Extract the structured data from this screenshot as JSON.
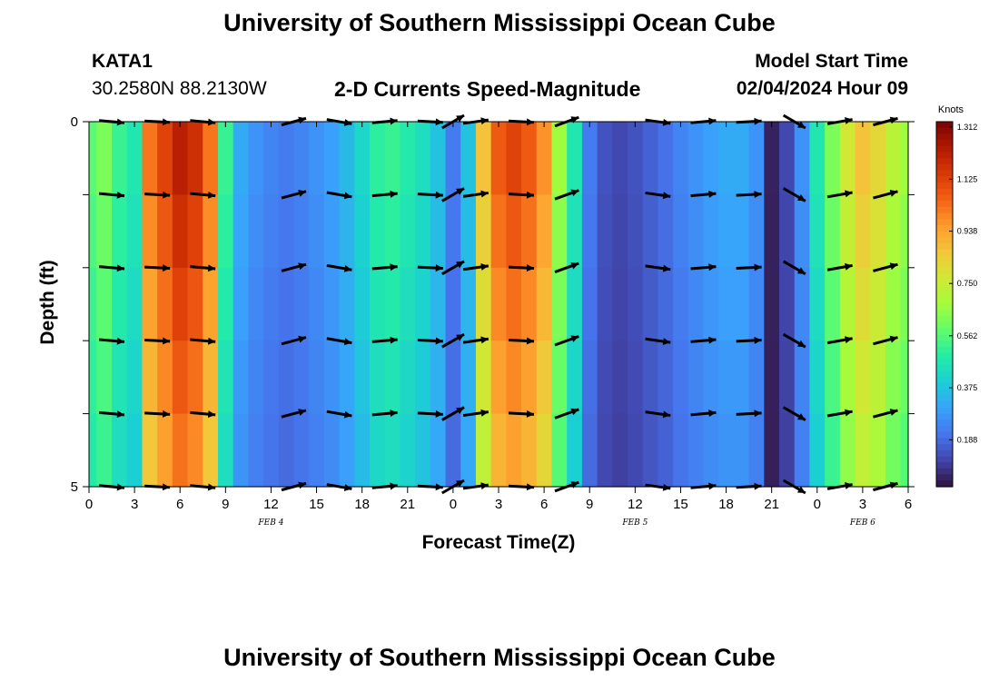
{
  "header": {
    "title": "University of Southern Mississippi Ocean Cube",
    "station": "KATA1",
    "location": "30.2580N  88.2130W",
    "plot_title": "2-D Currents Speed-Magnitude",
    "model_start_label": "Model Start Time",
    "model_start_value": "02/04/2024 Hour 09"
  },
  "footer": {
    "title": "University of Southern Mississippi Ocean Cube"
  },
  "colors": {
    "ramp": [
      "#30123b",
      "#4145ab",
      "#4675ed",
      "#39a2fc",
      "#1bcfd4",
      "#24eca6",
      "#61fc6c",
      "#a4fc3b",
      "#d1e834",
      "#f3c63a",
      "#fe9b2d",
      "#f36315",
      "#d93806",
      "#b11901",
      "#7a0403"
    ]
  },
  "chart_data": {
    "type": "heatmap",
    "title": "2-D Currents Speed-Magnitude",
    "xlabel": "Forecast Time(Z)",
    "ylabel": "Depth (ft)",
    "x_tick_labels": [
      "0",
      "3",
      "6",
      "9",
      "12",
      "15",
      "18",
      "21",
      "0",
      "3",
      "6",
      "9",
      "12",
      "15",
      "18",
      "21",
      "0",
      "3",
      "6"
    ],
    "y_tick_labels": [
      "0",
      "5"
    ],
    "ylim": [
      0,
      5
    ],
    "date_labels": [
      {
        "text": "FEB 4",
        "hour": 12
      },
      {
        "text": "FEB 5",
        "hour": 36
      },
      {
        "text": "FEB 6",
        "hour": 51
      }
    ],
    "colorbar": {
      "label": "Knots",
      "ticks": [
        "1.312",
        "1.125",
        "0.938",
        "0.750",
        "0.562",
        "0.375",
        "0.188"
      ],
      "min": 0.0,
      "max": 1.312
    },
    "time_hours": [
      0,
      1,
      2,
      3,
      4,
      5,
      6,
      7,
      8,
      9,
      10,
      11,
      12,
      13,
      14,
      15,
      16,
      17,
      18,
      19,
      20,
      21,
      22,
      23,
      24,
      25,
      26,
      27,
      28,
      29,
      30,
      31,
      32,
      33,
      34,
      35,
      36,
      37,
      38,
      39,
      40,
      41,
      42,
      43,
      44,
      45,
      46,
      47,
      48,
      49,
      50,
      51,
      52,
      53,
      54
    ],
    "speed_knots": [
      0.55,
      0.6,
      0.5,
      0.45,
      1.0,
      1.1,
      1.2,
      1.15,
      1.0,
      0.5,
      0.3,
      0.25,
      0.22,
      0.2,
      0.22,
      0.25,
      0.28,
      0.33,
      0.4,
      0.48,
      0.5,
      0.46,
      0.42,
      0.35,
      0.2,
      0.35,
      0.85,
      1.05,
      1.1,
      1.05,
      0.95,
      0.65,
      0.45,
      0.2,
      0.12,
      0.1,
      0.12,
      0.15,
      0.18,
      0.22,
      0.25,
      0.28,
      0.3,
      0.3,
      0.25,
      0.03,
      0.1,
      0.25,
      0.45,
      0.6,
      0.75,
      0.85,
      0.8,
      0.7,
      0.65
    ],
    "vectors": [
      {
        "hour": 1.5,
        "angle": -5
      },
      {
        "hour": 4.5,
        "angle": -3
      },
      {
        "hour": 7.5,
        "angle": -5
      },
      {
        "hour": 13.5,
        "angle": 15
      },
      {
        "hour": 16.5,
        "angle": -10
      },
      {
        "hour": 19.5,
        "angle": 5
      },
      {
        "hour": 22.5,
        "angle": -3
      },
      {
        "hour": 24,
        "angle": 30
      },
      {
        "hour": 25.5,
        "angle": 8
      },
      {
        "hour": 28.5,
        "angle": -3
      },
      {
        "hour": 31.5,
        "angle": 20
      },
      {
        "hour": 37.5,
        "angle": -8
      },
      {
        "hour": 40.5,
        "angle": 5
      },
      {
        "hour": 43.5,
        "angle": 3
      },
      {
        "hour": 46.5,
        "angle": -30
      },
      {
        "hour": 49.5,
        "angle": 10
      },
      {
        "hour": 52.5,
        "angle": 15
      }
    ]
  }
}
